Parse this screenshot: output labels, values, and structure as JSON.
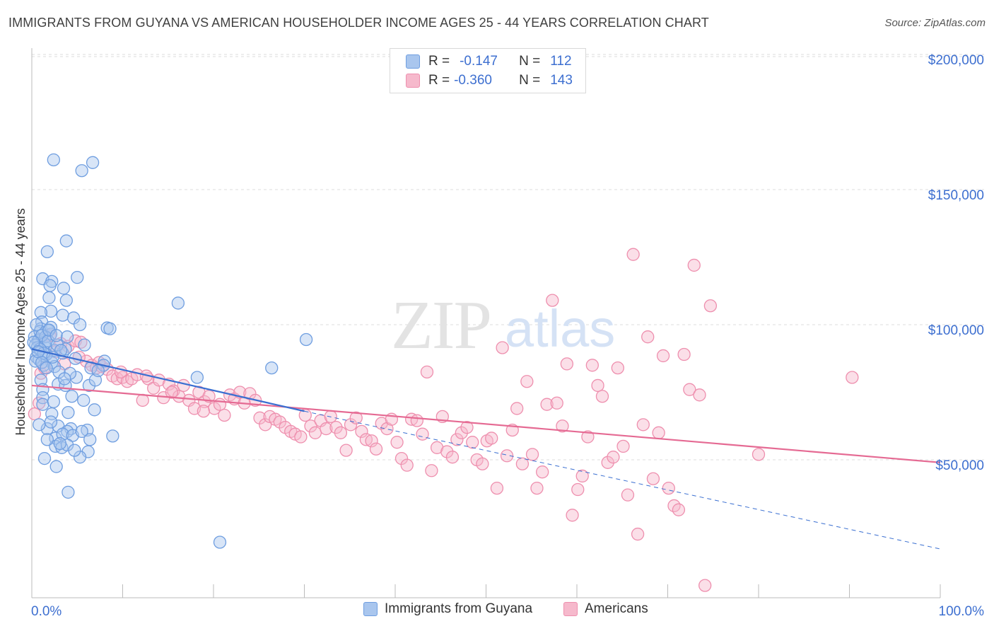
{
  "title": "IMMIGRANTS FROM GUYANA VS AMERICAN HOUSEHOLDER INCOME AGES 25 - 44 YEARS CORRELATION CHART",
  "source": "Source: ZipAtlas.com",
  "watermark": {
    "zip": "ZIP",
    "atlas": "atlas"
  },
  "legend": {
    "rows": [
      {
        "r_label": "R =",
        "r_value": "-0.147",
        "n_label": "N =",
        "n_value": "112"
      },
      {
        "r_label": "R =",
        "r_value": "-0.360",
        "n_label": "N =",
        "n_value": "143"
      }
    ]
  },
  "bottom_legend": {
    "series_1": "Immigrants from Guyana",
    "series_2": "Americans"
  },
  "colors": {
    "blue_fill": "#a9c6ee",
    "blue_stroke": "#6f9ee0",
    "blue_line": "#3a6fd1",
    "pink_fill": "#f6b9cc",
    "pink_stroke": "#ee8fae",
    "pink_line": "#e56a93",
    "tick_text": "#3d6fd0",
    "grid": "#dcdcdc"
  },
  "chart_data": {
    "type": "scatter",
    "title": "IMMIGRANTS FROM GUYANA VS AMERICAN HOUSEHOLDER INCOME AGES 25 - 44 YEARS CORRELATION CHART",
    "xlabel": "",
    "ylabel": "Householder Income Ages 25 - 44 years",
    "x_unit": "percent",
    "xlim": [
      0,
      100
    ],
    "ylim": [
      0,
      210000
    ],
    "x_tick_labels": [
      "0.0%",
      "100.0%"
    ],
    "y_ticks": [
      50000,
      100000,
      150000,
      200000
    ],
    "y_tick_labels": [
      "$50,000",
      "$100,000",
      "$150,000",
      "$200,000"
    ],
    "grid": true,
    "legend_position": "top-center",
    "series": [
      {
        "name": "Immigrants from Guyana",
        "r": -0.147,
        "n": 112,
        "trend": {
          "x0": 0,
          "y0": 91000,
          "x1": 30,
          "y1": 68000,
          "dashed_to_x": 100,
          "dashed_to_y": 17000
        },
        "points": [
          [
            2.4,
            161000
          ],
          [
            5.5,
            157000
          ],
          [
            6.7,
            160000
          ],
          [
            1.7,
            127000
          ],
          [
            3.8,
            131000
          ],
          [
            1.2,
            117000
          ],
          [
            2.2,
            116000
          ],
          [
            2.0,
            114500
          ],
          [
            3.5,
            113500
          ],
          [
            1.9,
            110000
          ],
          [
            5.0,
            117500
          ],
          [
            3.8,
            109000
          ],
          [
            2.1,
            105000
          ],
          [
            1.0,
            104500
          ],
          [
            3.4,
            103500
          ],
          [
            1.1,
            101000
          ],
          [
            4.6,
            102500
          ],
          [
            5.3,
            100000
          ],
          [
            8.3,
            98800
          ],
          [
            1.0,
            98500
          ],
          [
            1.8,
            97800
          ],
          [
            2.1,
            96500
          ],
          [
            0.3,
            95500
          ],
          [
            0.8,
            94500
          ],
          [
            0.7,
            94000
          ],
          [
            0.4,
            92500
          ],
          [
            1.5,
            91500
          ],
          [
            2.5,
            90500
          ],
          [
            3.4,
            89500
          ],
          [
            0.5,
            88000
          ],
          [
            0.8,
            87000
          ],
          [
            2.2,
            86000
          ],
          [
            1.3,
            85000
          ],
          [
            8.0,
            86500
          ],
          [
            7.9,
            85000
          ],
          [
            5.8,
            92500
          ],
          [
            3.7,
            91000
          ],
          [
            1.3,
            88500
          ],
          [
            0.9,
            97500
          ],
          [
            2.1,
            99000
          ],
          [
            0.5,
            100000
          ],
          [
            8.6,
            98500
          ],
          [
            1.5,
            95500
          ],
          [
            1.4,
            93000
          ],
          [
            1.0,
            79500
          ],
          [
            2.9,
            78000
          ],
          [
            1.2,
            76000
          ],
          [
            3.7,
            77500
          ],
          [
            4.9,
            80500
          ],
          [
            6.3,
            77500
          ],
          [
            4.2,
            82000
          ],
          [
            7.0,
            79500
          ],
          [
            1.2,
            73000
          ],
          [
            4.4,
            73500
          ],
          [
            6.9,
            68500
          ],
          [
            1.2,
            70500
          ],
          [
            2.2,
            67000
          ],
          [
            4.0,
            67500
          ],
          [
            1.7,
            61500
          ],
          [
            2.9,
            62500
          ],
          [
            4.3,
            61500
          ],
          [
            3.9,
            60500
          ],
          [
            2.6,
            58000
          ],
          [
            3.4,
            59500
          ],
          [
            4.5,
            59000
          ],
          [
            6.1,
            61000
          ],
          [
            5.5,
            60500
          ],
          [
            8.9,
            58800
          ],
          [
            2.6,
            55000
          ],
          [
            3.3,
            54500
          ],
          [
            3.9,
            55500
          ],
          [
            6.4,
            57500
          ],
          [
            6.2,
            53000
          ],
          [
            5.3,
            51000
          ],
          [
            1.4,
            50500
          ],
          [
            2.7,
            47500
          ],
          [
            4.0,
            38000
          ],
          [
            16.1,
            108000
          ],
          [
            18.2,
            80500
          ],
          [
            26.4,
            84000
          ],
          [
            30.2,
            94500
          ],
          [
            20.7,
            19500
          ],
          [
            0.6,
            91500
          ],
          [
            1.1,
            96000
          ],
          [
            1.8,
            94000
          ],
          [
            2.8,
            92500
          ],
          [
            3.2,
            90500
          ],
          [
            0.4,
            86500
          ],
          [
            1.6,
            89000
          ],
          [
            2.5,
            84500
          ],
          [
            4.8,
            87500
          ],
          [
            6.5,
            84000
          ],
          [
            7.3,
            83000
          ],
          [
            1.9,
            98000
          ],
          [
            2.7,
            96000
          ],
          [
            3.9,
            95500
          ],
          [
            0.9,
            91000
          ],
          [
            1.3,
            89500
          ],
          [
            2.3,
            88000
          ],
          [
            0.2,
            93500
          ],
          [
            0.7,
            90000
          ],
          [
            1.1,
            86000
          ],
          [
            1.6,
            84000
          ],
          [
            3.0,
            82500
          ],
          [
            3.6,
            80000
          ],
          [
            5.7,
            72000
          ],
          [
            2.1,
            64000
          ],
          [
            0.8,
            63000
          ],
          [
            1.7,
            57500
          ],
          [
            3.1,
            56000
          ],
          [
            4.7,
            53500
          ],
          [
            2.4,
            71500
          ]
        ]
      },
      {
        "name": "Americans",
        "r": -0.36,
        "n": 143,
        "trend": {
          "x0": 0,
          "y0": 77500,
          "x1": 100,
          "y1": 49000
        },
        "points": [
          [
            0.3,
            67000
          ],
          [
            0.8,
            71000
          ],
          [
            1.0,
            82000
          ],
          [
            1.4,
            84000
          ],
          [
            2.0,
            96000
          ],
          [
            2.6,
            90000
          ],
          [
            3.2,
            93000
          ],
          [
            4.0,
            92000
          ],
          [
            4.8,
            94000
          ],
          [
            5.4,
            93500
          ],
          [
            6.0,
            86500
          ],
          [
            6.6,
            85000
          ],
          [
            7.1,
            84000
          ],
          [
            7.7,
            84500
          ],
          [
            8.3,
            83500
          ],
          [
            8.9,
            81000
          ],
          [
            9.4,
            80000
          ],
          [
            10.0,
            80500
          ],
          [
            10.5,
            79000
          ],
          [
            11.0,
            80000
          ],
          [
            11.6,
            81500
          ],
          [
            12.2,
            72000
          ],
          [
            12.8,
            80000
          ],
          [
            13.4,
            76500
          ],
          [
            14.0,
            79500
          ],
          [
            14.5,
            73000
          ],
          [
            15.1,
            78000
          ],
          [
            15.6,
            75500
          ],
          [
            16.2,
            73500
          ],
          [
            16.7,
            77500
          ],
          [
            17.3,
            72000
          ],
          [
            17.9,
            69000
          ],
          [
            18.4,
            75000
          ],
          [
            19.0,
            71500
          ],
          [
            19.5,
            73500
          ],
          [
            20.1,
            69000
          ],
          [
            20.7,
            70500
          ],
          [
            21.2,
            66500
          ],
          [
            21.8,
            74000
          ],
          [
            22.3,
            72500
          ],
          [
            22.9,
            75000
          ],
          [
            23.4,
            71000
          ],
          [
            24.0,
            74500
          ],
          [
            24.6,
            72000
          ],
          [
            25.1,
            65500
          ],
          [
            25.7,
            63000
          ],
          [
            26.2,
            66000
          ],
          [
            26.8,
            65000
          ],
          [
            27.3,
            64000
          ],
          [
            27.9,
            62000
          ],
          [
            28.5,
            60500
          ],
          [
            29.0,
            59500
          ],
          [
            29.6,
            58500
          ],
          [
            30.1,
            66500
          ],
          [
            30.7,
            62500
          ],
          [
            31.2,
            60000
          ],
          [
            31.8,
            64500
          ],
          [
            32.4,
            61500
          ],
          [
            32.9,
            66000
          ],
          [
            33.5,
            62000
          ],
          [
            34.0,
            60000
          ],
          [
            34.6,
            53500
          ],
          [
            35.1,
            63000
          ],
          [
            35.7,
            65500
          ],
          [
            36.3,
            60500
          ],
          [
            36.8,
            57500
          ],
          [
            37.4,
            57000
          ],
          [
            37.9,
            54000
          ],
          [
            38.5,
            63500
          ],
          [
            39.1,
            61500
          ],
          [
            39.6,
            65000
          ],
          [
            40.2,
            56500
          ],
          [
            40.7,
            50500
          ],
          [
            41.3,
            48000
          ],
          [
            41.8,
            65000
          ],
          [
            42.4,
            64500
          ],
          [
            43.0,
            59500
          ],
          [
            43.5,
            82500
          ],
          [
            44.0,
            46000
          ],
          [
            44.6,
            54500
          ],
          [
            45.2,
            66000
          ],
          [
            45.7,
            53000
          ],
          [
            46.3,
            51000
          ],
          [
            46.8,
            57500
          ],
          [
            47.3,
            60000
          ],
          [
            47.9,
            62000
          ],
          [
            48.5,
            56500
          ],
          [
            49.0,
            50000
          ],
          [
            49.6,
            48500
          ],
          [
            50.1,
            57000
          ],
          [
            50.6,
            58000
          ],
          [
            51.2,
            39500
          ],
          [
            51.8,
            91500
          ],
          [
            52.3,
            51500
          ],
          [
            52.9,
            61000
          ],
          [
            53.4,
            69000
          ],
          [
            54.0,
            48500
          ],
          [
            54.5,
            79000
          ],
          [
            55.1,
            52000
          ],
          [
            55.6,
            39500
          ],
          [
            56.2,
            45500
          ],
          [
            56.7,
            70500
          ],
          [
            57.3,
            109000
          ],
          [
            57.8,
            71000
          ],
          [
            58.4,
            62500
          ],
          [
            58.9,
            85500
          ],
          [
            59.5,
            29500
          ],
          [
            60.1,
            39000
          ],
          [
            60.6,
            44000
          ],
          [
            61.2,
            58500
          ],
          [
            61.7,
            85000
          ],
          [
            62.3,
            77500
          ],
          [
            62.8,
            73500
          ],
          [
            63.4,
            49000
          ],
          [
            64.0,
            51000
          ],
          [
            64.5,
            84000
          ],
          [
            65.1,
            55000
          ],
          [
            65.6,
            37000
          ],
          [
            66.2,
            126000
          ],
          [
            66.7,
            22500
          ],
          [
            67.3,
            63000
          ],
          [
            67.8,
            95500
          ],
          [
            68.4,
            43000
          ],
          [
            69.0,
            60000
          ],
          [
            69.5,
            88500
          ],
          [
            70.1,
            39500
          ],
          [
            70.7,
            33000
          ],
          [
            71.2,
            31500
          ],
          [
            71.8,
            89000
          ],
          [
            72.4,
            76000
          ],
          [
            72.9,
            122000
          ],
          [
            73.5,
            74000
          ],
          [
            74.1,
            3500
          ],
          [
            74.7,
            107000
          ],
          [
            80.0,
            52000
          ],
          [
            90.3,
            80500
          ],
          [
            3.6,
            85500
          ],
          [
            5.2,
            88000
          ],
          [
            7.4,
            86000
          ],
          [
            9.8,
            82500
          ],
          [
            12.6,
            81000
          ],
          [
            15.4,
            75000
          ],
          [
            18.9,
            68000
          ]
        ]
      }
    ]
  }
}
